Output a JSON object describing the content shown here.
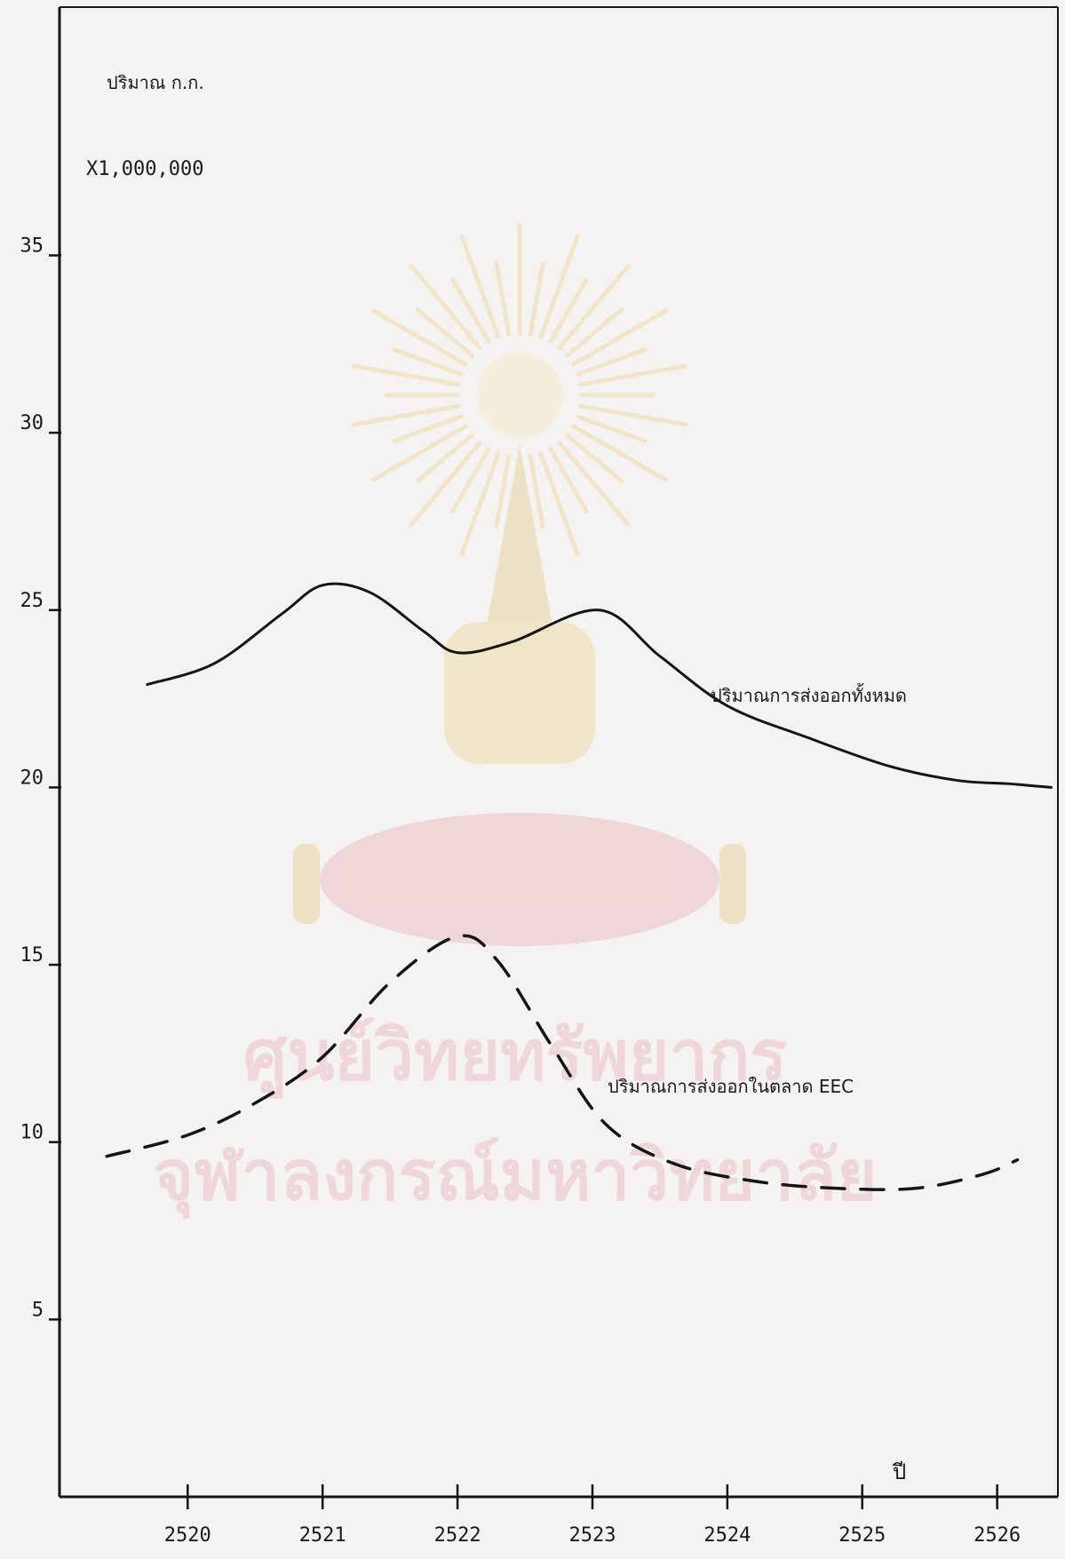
{
  "chart_data": {
    "type": "line",
    "ylabel": "ปริมาณ ก.ก.",
    "ylabel_multiplier": "X1,000,000",
    "xlabel": "ปี",
    "x_ticks": [
      "2520",
      "2521",
      "2522",
      "2523",
      "2524",
      "2525",
      "2526"
    ],
    "y_ticks": [
      5,
      10,
      15,
      20,
      25,
      30,
      35
    ],
    "ylim": [
      0,
      42
    ],
    "xlim": [
      2519.05,
      2526.45
    ],
    "grid": false,
    "series": [
      {
        "name": "ปริมาณการส่งออกทั้งหมด",
        "style": "solid",
        "x": [
          2519.7,
          2520.2,
          2520.7,
          2521.0,
          2521.35,
          2521.75,
          2522.0,
          2522.4,
          2523.05,
          2523.5,
          2524.0,
          2524.6,
          2525.2,
          2525.7,
          2526.1,
          2526.4
        ],
        "y": [
          22.9,
          23.5,
          24.9,
          25.7,
          25.5,
          24.4,
          23.8,
          24.1,
          25.0,
          23.7,
          22.3,
          21.4,
          20.6,
          20.2,
          20.1,
          20.0
        ]
      },
      {
        "name": "ปริมาณการส่งออกในตลาด EEC",
        "style": "dashed",
        "x": [
          2519.4,
          2520.0,
          2520.5,
          2521.0,
          2521.5,
          2522.0,
          2522.3,
          2522.7,
          2523.1,
          2523.6,
          2524.2,
          2524.8,
          2525.4,
          2525.9,
          2526.15
        ],
        "y": [
          9.6,
          10.2,
          11.1,
          12.4,
          14.5,
          15.8,
          15.1,
          12.7,
          10.5,
          9.4,
          8.9,
          8.7,
          8.7,
          9.1,
          9.5
        ]
      }
    ]
  },
  "colors": {
    "ink": "#151515",
    "paper": "#f4f3f1",
    "watermark_gold": "#e8c97a",
    "watermark_pink": "#e59aa6"
  },
  "watermark": {
    "line1": "ศูนย์วิทยทรัพยากร",
    "line2": "จุฬาลงกรณ์มหาวิทยาลัย"
  }
}
